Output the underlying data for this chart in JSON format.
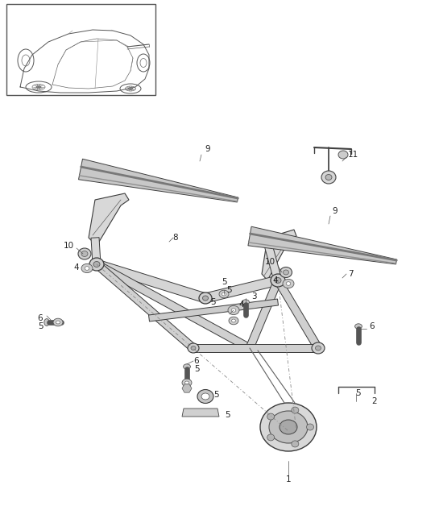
{
  "bg_color": "#ffffff",
  "line_color": "#3a3a3a",
  "fig_width": 5.45,
  "fig_height": 6.28,
  "dpi": 100
}
